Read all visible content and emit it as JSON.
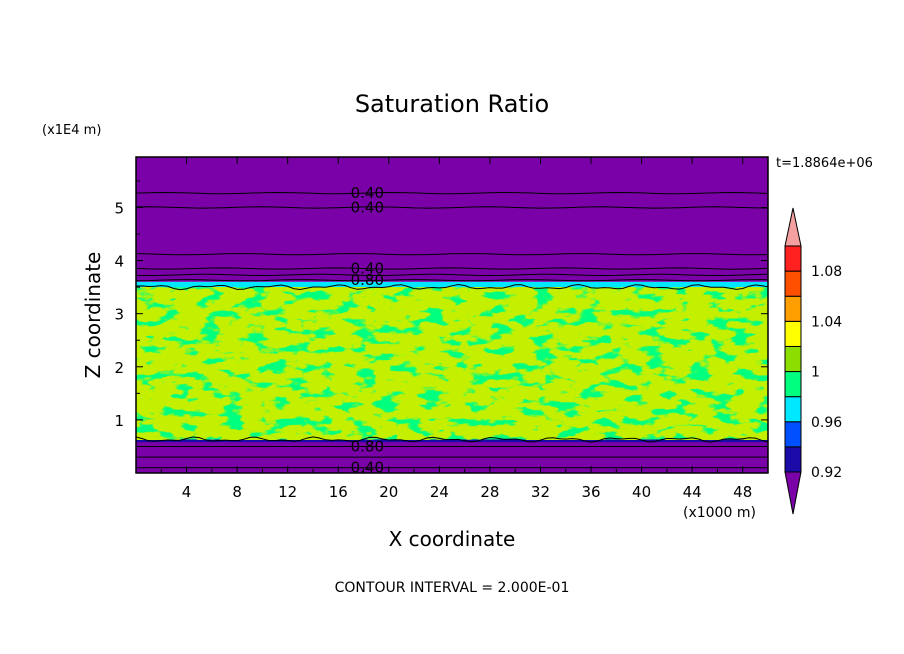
{
  "chart_data": {
    "type": "heatmap",
    "title": "Saturation Ratio",
    "xlabel": "X coordinate",
    "ylabel": "Z coordinate",
    "x_scale_label": "(x1000 m)",
    "y_scale_label": "(x1E4 m)",
    "time_label": "t=1.8864e+06",
    "footer": "CONTOUR INTERVAL = 2.000E-01",
    "xlim": [
      0,
      50
    ],
    "ylim": [
      0,
      5.95
    ],
    "x_ticks": [
      4,
      8,
      12,
      16,
      20,
      24,
      28,
      32,
      36,
      40,
      44,
      48
    ],
    "y_ticks": [
      1,
      2,
      3,
      4,
      5
    ],
    "levels": [
      0.92,
      0.94,
      0.96,
      0.98,
      1.0,
      1.02,
      1.04,
      1.06,
      1.08,
      1.1
    ],
    "colorbar_labels": [
      {
        "value": 0.92,
        "text": "0.92"
      },
      {
        "value": 0.96,
        "text": "0.96"
      },
      {
        "value": 1.0,
        "text": "1"
      },
      {
        "value": 1.04,
        "text": "1.04"
      },
      {
        "value": 1.08,
        "text": "1.08"
      }
    ],
    "colors": [
      "#7a00a8",
      "#1a0aa8",
      "#0050ff",
      "#00e8ff",
      "#00ff7f",
      "#8cdd00",
      "#ffff00",
      "#ffa000",
      "#ff5000",
      "#ff2020",
      "#f4a0a0"
    ],
    "bands": [
      {
        "z_min": 0.0,
        "z_max": 0.6,
        "level": "below 0.92"
      },
      {
        "z_min": 0.6,
        "z_max": 0.63,
        "level": "0.94-0.96"
      },
      {
        "z_min": 0.63,
        "z_max": 3.5,
        "level": "0.98-1.02 (turbulent)"
      },
      {
        "z_min": 3.5,
        "z_max": 3.6,
        "level": "0.94-0.98"
      },
      {
        "z_min": 3.6,
        "z_max": 5.95,
        "level": "below 0.92"
      }
    ],
    "contour_labels": [
      {
        "text": "0.40",
        "x": 18.3,
        "z": 5.27
      },
      {
        "text": "0.40",
        "x": 18.3,
        "z": 5.0
      },
      {
        "text": "0.40",
        "x": 18.3,
        "z": 3.85
      },
      {
        "text": "0.80",
        "x": 18.3,
        "z": 3.63
      },
      {
        "text": "0.80",
        "x": 18.3,
        "z": 0.5
      },
      {
        "text": "0.40",
        "x": 18.3,
        "z": 0.1
      }
    ]
  }
}
